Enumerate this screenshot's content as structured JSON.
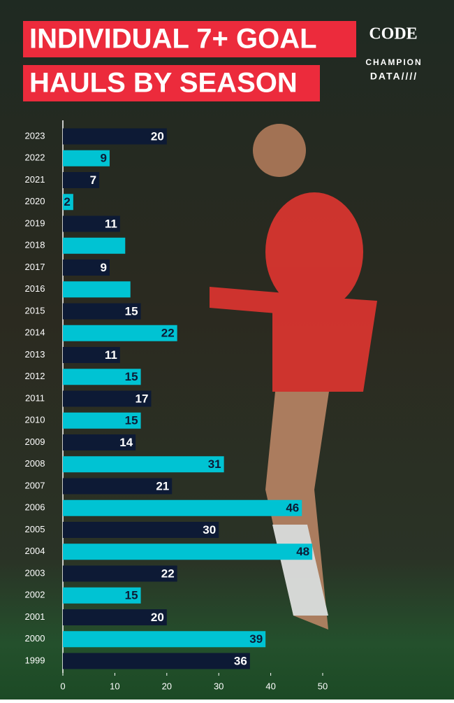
{
  "chart_data": {
    "type": "bar",
    "orientation": "horizontal",
    "title_lines": [
      "INDIVIDUAL 7+ GOAL",
      "HAULS BY SEASON"
    ],
    "logos": [
      "CODE",
      "CHAMPION",
      "DATA////"
    ],
    "categories": [
      "2023",
      "2022",
      "2021",
      "2020",
      "2019",
      "2018",
      "2017",
      "2016",
      "2015",
      "2014",
      "2013",
      "2012",
      "2011",
      "2010",
      "2009",
      "2008",
      "2007",
      "2006",
      "2005",
      "2004",
      "2003",
      "2002",
      "2001",
      "2000",
      "1999"
    ],
    "values": [
      20,
      9,
      7,
      2,
      11,
      12,
      9,
      13,
      15,
      22,
      11,
      15,
      17,
      15,
      14,
      31,
      21,
      46,
      30,
      48,
      22,
      15,
      20,
      39,
      36
    ],
    "value_labels": [
      "20",
      "9",
      "7",
      "2",
      "11",
      null,
      "9",
      null,
      "15",
      "22",
      "11",
      "15",
      "17",
      "15",
      "14",
      "31",
      "21",
      "46",
      "30",
      "48",
      "22",
      "15",
      "20",
      "39",
      "36"
    ],
    "colors": [
      "#0d1a35",
      "#00c3d3"
    ],
    "xlim": [
      0,
      50
    ],
    "xticks": [
      0,
      10,
      20,
      30,
      40,
      50
    ]
  }
}
